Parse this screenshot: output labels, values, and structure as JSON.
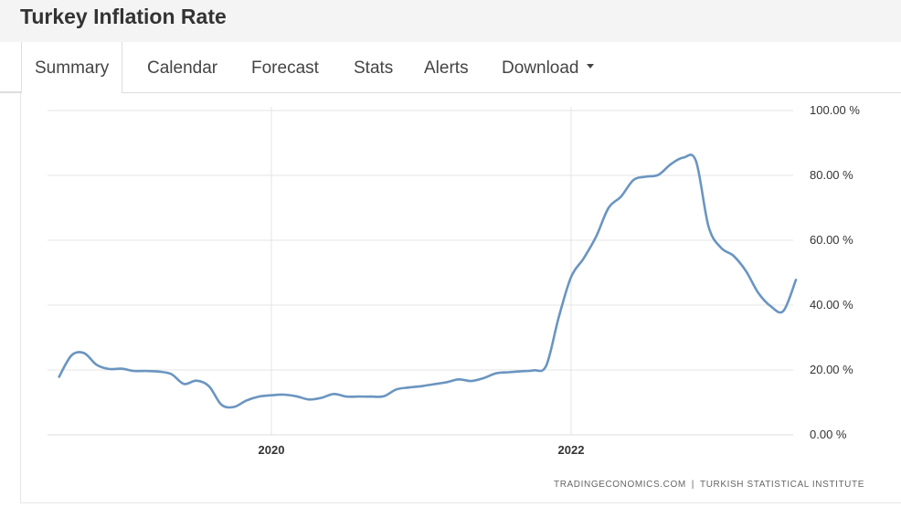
{
  "page": {
    "title": "Turkey Inflation Rate"
  },
  "tabs": [
    {
      "label": "Summary",
      "active": true
    },
    {
      "label": "Calendar",
      "active": false
    },
    {
      "label": "Forecast",
      "active": false
    },
    {
      "label": "Stats",
      "active": false
    },
    {
      "label": "Alerts",
      "active": false
    },
    {
      "label": "Download",
      "active": false,
      "dropdown": true
    }
  ],
  "source": {
    "site": "TRADINGECONOMICS.COM",
    "separator": "|",
    "institute": "TURKISH STATISTICAL INSTITUTE"
  },
  "colors": {
    "line": "#6a95c0",
    "grid": "#e4e4e4",
    "title_bg": "#f4f4f5"
  },
  "chart_data": {
    "type": "line",
    "title": "",
    "xlabel": "",
    "ylabel": "",
    "x_ticks": [
      "2020",
      "2022"
    ],
    "y_ticks": [
      "0.00 %",
      "20.00 %",
      "40.00 %",
      "60.00 %",
      "80.00 %",
      "100.00 %"
    ],
    "ylim": [
      0,
      100
    ],
    "xlim": [
      "2018-08",
      "2023-07"
    ],
    "grid": true,
    "series": [
      {
        "x": [
          "2018-08",
          "2018-09",
          "2018-10",
          "2018-11",
          "2018-12",
          "2019-01",
          "2019-02",
          "2019-03",
          "2019-04",
          "2019-05",
          "2019-06",
          "2019-07",
          "2019-08",
          "2019-09",
          "2019-10",
          "2019-11",
          "2019-12",
          "2020-01",
          "2020-02",
          "2020-03",
          "2020-04",
          "2020-05",
          "2020-06",
          "2020-07",
          "2020-08",
          "2020-09",
          "2020-10",
          "2020-11",
          "2020-12",
          "2021-01",
          "2021-02",
          "2021-03",
          "2021-04",
          "2021-05",
          "2021-06",
          "2021-07",
          "2021-08",
          "2021-09",
          "2021-10",
          "2021-11",
          "2021-12",
          "2022-01",
          "2022-02",
          "2022-03",
          "2022-04",
          "2022-05",
          "2022-06",
          "2022-07",
          "2022-08",
          "2022-09",
          "2022-10",
          "2022-11",
          "2022-12",
          "2023-01",
          "2023-02",
          "2023-03",
          "2023-04",
          "2023-05",
          "2023-06",
          "2023-07"
        ],
        "values": [
          17.9,
          24.5,
          25.2,
          21.6,
          20.3,
          20.4,
          19.7,
          19.7,
          19.5,
          18.7,
          15.7,
          16.7,
          15.0,
          9.3,
          8.6,
          10.6,
          11.8,
          12.2,
          12.4,
          11.9,
          10.9,
          11.4,
          12.6,
          11.8,
          11.8,
          11.8,
          11.9,
          14.0,
          14.6,
          15.0,
          15.6,
          16.2,
          17.1,
          16.6,
          17.5,
          19.0,
          19.3,
          19.6,
          19.9,
          21.3,
          36.1,
          48.7,
          54.4,
          61.1,
          70.0,
          73.5,
          78.6,
          79.6,
          80.2,
          83.5,
          85.5,
          84.4,
          64.3,
          57.7,
          55.2,
          50.5,
          43.7,
          39.6,
          38.2,
          47.8
        ]
      }
    ]
  }
}
